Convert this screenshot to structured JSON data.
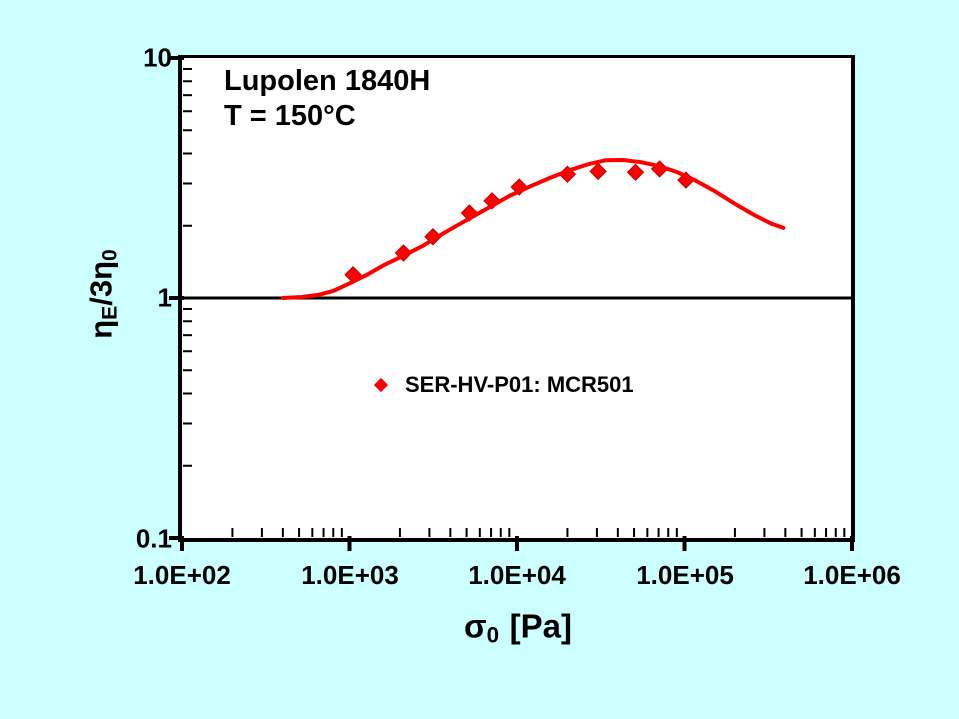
{
  "colors": {
    "background": "#CCFFFF",
    "plot_background": "#FFFFFF",
    "axis": "#000000",
    "series_red": "#FF0000"
  },
  "title": {
    "line1": "Lupolen 1840H",
    "line2": "T = 150°C"
  },
  "legend": {
    "marker": "red-diamond-icon",
    "marker_color": "#FF0000",
    "label": "SER-HV-P01: MCR501"
  },
  "axes": {
    "x": {
      "scale": "log",
      "tick_labels": [
        "1.0E+02",
        "1.0E+03",
        "1.0E+04",
        "1.0E+05",
        "1.0E+06"
      ],
      "tick_values": [
        100,
        1000,
        10000,
        100000,
        1000000
      ],
      "minor_multiples": [
        2,
        3,
        4,
        5,
        6,
        7,
        8,
        9
      ],
      "label_sigma": "σ",
      "label_sub": "0",
      "label_unit": "[Pa]"
    },
    "y": {
      "scale": "log",
      "tick_labels": [
        "10",
        "1",
        "0.1"
      ],
      "tick_values": [
        10,
        1,
        0.1
      ],
      "minor_decade_bases": [
        1,
        0.1
      ],
      "minor_multiples": [
        2,
        3,
        4,
        5,
        6,
        7,
        8,
        9
      ],
      "label_eta1": "η",
      "label_sub1": "E",
      "label_mid": "/3",
      "label_eta2": "η",
      "label_sub2": "0"
    }
  },
  "chart_data": {
    "type": "scatter",
    "title": "Lupolen 1840H, T = 150°C",
    "xlabel": "σ0 [Pa]",
    "ylabel": "ηE/3η0",
    "x_scale": "log",
    "y_scale": "log",
    "xlim": [
      100,
      1000000
    ],
    "ylim": [
      0.1,
      10
    ],
    "grid": false,
    "legend_position": "center-inside",
    "reference_line_y": 1,
    "series": [
      {
        "name": "SER-HV-P01: MCR501",
        "type": "scatter",
        "marker": "diamond",
        "color": "#FF0000",
        "points": [
          [
            1050,
            1.25
          ],
          [
            2100,
            1.54
          ],
          [
            3150,
            1.8
          ],
          [
            5200,
            2.26
          ],
          [
            7100,
            2.54
          ],
          [
            10300,
            2.9
          ],
          [
            20000,
            3.28
          ],
          [
            30500,
            3.37
          ],
          [
            51000,
            3.34
          ],
          [
            71000,
            3.45
          ],
          [
            102000,
            3.1
          ]
        ]
      },
      {
        "name": "fit curve",
        "type": "line",
        "color": "#FF0000",
        "width": 4,
        "points": [
          [
            400,
            1.0
          ],
          [
            520,
            1.01
          ],
          [
            650,
            1.03
          ],
          [
            800,
            1.07
          ],
          [
            1000,
            1.15
          ],
          [
            1300,
            1.26
          ],
          [
            1600,
            1.37
          ],
          [
            2100,
            1.5
          ],
          [
            2700,
            1.64
          ],
          [
            3400,
            1.81
          ],
          [
            4300,
            1.99
          ],
          [
            5500,
            2.19
          ],
          [
            7000,
            2.41
          ],
          [
            9000,
            2.66
          ],
          [
            12000,
            2.92
          ],
          [
            16000,
            3.18
          ],
          [
            21000,
            3.42
          ],
          [
            27000,
            3.62
          ],
          [
            34000,
            3.75
          ],
          [
            43000,
            3.76
          ],
          [
            55000,
            3.68
          ],
          [
            70000,
            3.55
          ],
          [
            90000,
            3.35
          ],
          [
            115000,
            3.1
          ],
          [
            150000,
            2.8
          ],
          [
            200000,
            2.47
          ],
          [
            260000,
            2.22
          ],
          [
            330000,
            2.04
          ],
          [
            390000,
            1.96
          ]
        ]
      }
    ]
  }
}
